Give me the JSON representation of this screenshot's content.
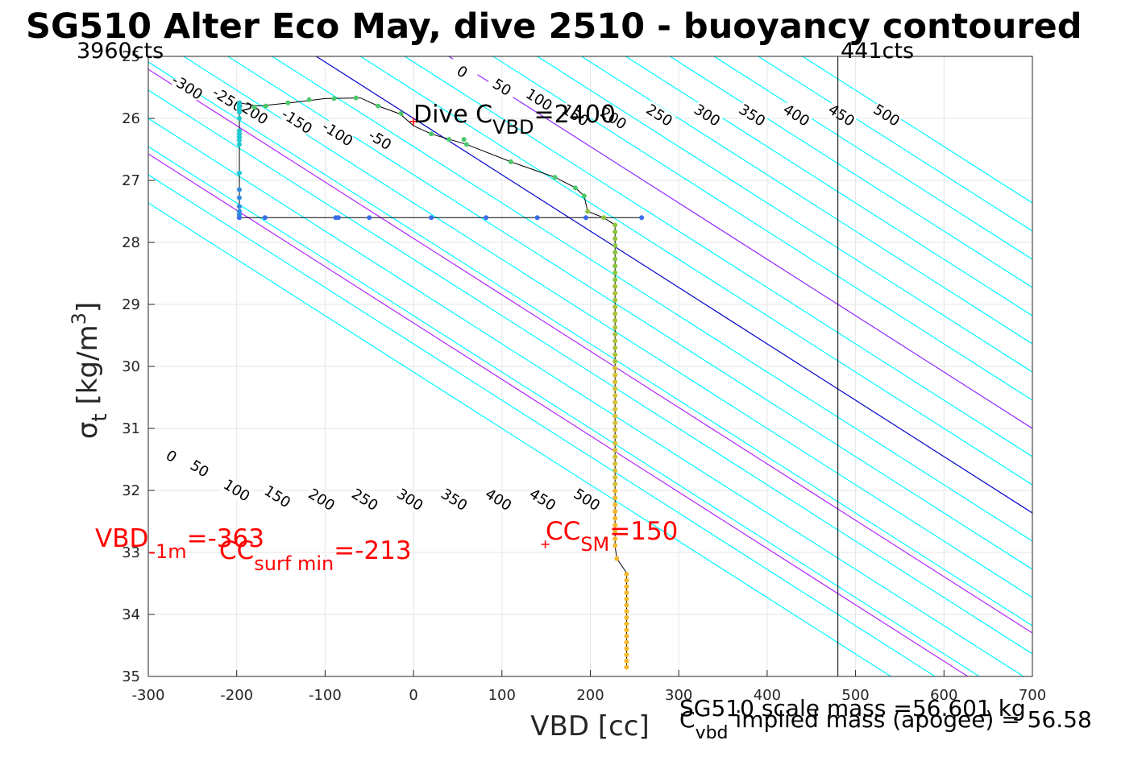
{
  "chart_data": {
    "type": "scatter",
    "title": "SG510 Alter Eco May, dive 2510 - buoyancy contoured",
    "xlabel": "VBD [cc]",
    "ylabel_main": "σ",
    "ylabel_sub": "t",
    "ylabel_units": "[kg/m",
    "ylabel_sup": "3",
    "ylabel_close": "]",
    "xlim": [
      -300,
      700
    ],
    "ylim": [
      25,
      35
    ],
    "y_reversed": true,
    "grid": true,
    "xticks": [
      "-300",
      "-200",
      "-100",
      "0",
      "100",
      "200",
      "300",
      "400",
      "500",
      "600",
      "700"
    ],
    "yticks": [
      "25",
      "26",
      "27",
      "28",
      "29",
      "30",
      "31",
      "32",
      "33",
      "34",
      "35"
    ],
    "corner_left": "3960cts",
    "corner_right": "441cts",
    "vbd_limit_line_x": 480,
    "contour_density_slope": 110,
    "colors": {
      "contour": "#00ffff",
      "zero_contour": "#0000cc",
      "highlight_contour": "#b026ff",
      "profile_line": "#000000",
      "annotation": "#ff0000"
    },
    "contour_offsets": [
      -450,
      -400,
      -350,
      -300,
      -250,
      -200,
      -150,
      -100,
      -50,
      0,
      50,
      100,
      150,
      200,
      250,
      300,
      350,
      400,
      450,
      500,
      550
    ],
    "highlight_offsets": [
      -363,
      -213,
      150
    ],
    "upper_contour_labels": [
      {
        "text": "-300",
        "x": -256,
        "y": 25.5
      },
      {
        "text": "-250",
        "x": -210,
        "y": 25.7
      },
      {
        "text": "-200",
        "x": -182,
        "y": 25.9
      },
      {
        "text": "-150",
        "x": -132,
        "y": 26.05
      },
      {
        "text": "-100",
        "x": -86,
        "y": 26.25
      },
      {
        "text": "-50",
        "x": -38,
        "y": 26.35
      },
      {
        "text": "0",
        "x": 55,
        "y": 25.25
      },
      {
        "text": "50",
        "x": 100,
        "y": 25.5
      },
      {
        "text": "100",
        "x": 142,
        "y": 25.7
      },
      {
        "text": "150",
        "x": 183,
        "y": 25.95
      },
      {
        "text": "200",
        "x": 226,
        "y": 26.0
      },
      {
        "text": "250",
        "x": 278,
        "y": 25.95
      },
      {
        "text": "300",
        "x": 332,
        "y": 25.95
      },
      {
        "text": "350",
        "x": 383,
        "y": 25.95
      },
      {
        "text": "400",
        "x": 433,
        "y": 25.95
      },
      {
        "text": "450",
        "x": 484,
        "y": 25.95
      },
      {
        "text": "500",
        "x": 535,
        "y": 25.95
      }
    ],
    "lower_contour_labels": [
      {
        "text": "0",
        "x": -274,
        "y": 31.45
      },
      {
        "text": "50",
        "x": -242,
        "y": 31.65
      },
      {
        "text": "100",
        "x": -200,
        "y": 32.0
      },
      {
        "text": "150",
        "x": -154,
        "y": 32.1
      },
      {
        "text": "200",
        "x": -104,
        "y": 32.15
      },
      {
        "text": "250",
        "x": -55,
        "y": 32.15
      },
      {
        "text": "300",
        "x": -4,
        "y": 32.15
      },
      {
        "text": "350",
        "x": 46,
        "y": 32.15
      },
      {
        "text": "400",
        "x": 96,
        "y": 32.15
      },
      {
        "text": "450",
        "x": 146,
        "y": 32.15
      },
      {
        "text": "500",
        "x": 196,
        "y": 32.15
      }
    ],
    "profile": [
      {
        "x": -197,
        "y": 27.6
      },
      {
        "x": -197,
        "y": 27.5
      },
      {
        "x": -197,
        "y": 27.3
      },
      {
        "x": -197,
        "y": 27.0
      },
      {
        "x": -197,
        "y": 26.7
      },
      {
        "x": -197,
        "y": 26.4
      },
      {
        "x": -197,
        "y": 26.1
      },
      {
        "x": -197,
        "y": 25.85
      },
      {
        "x": -197,
        "y": 25.75
      },
      {
        "x": -175,
        "y": 25.8
      },
      {
        "x": -140,
        "y": 25.75
      },
      {
        "x": -100,
        "y": 25.68
      },
      {
        "x": -60,
        "y": 25.67
      },
      {
        "x": -40,
        "y": 25.8
      },
      {
        "x": -15,
        "y": 25.93
      },
      {
        "x": 0,
        "y": 26.12
      },
      {
        "x": 20,
        "y": 26.25
      },
      {
        "x": 60,
        "y": 26.42
      },
      {
        "x": 110,
        "y": 26.7
      },
      {
        "x": 160,
        "y": 26.95
      },
      {
        "x": 183,
        "y": 27.12
      },
      {
        "x": 193,
        "y": 27.25
      },
      {
        "x": 197,
        "y": 27.5
      },
      {
        "x": 215,
        "y": 27.6
      },
      {
        "x": 228,
        "y": 27.72
      },
      {
        "x": 228,
        "y": 28.5
      },
      {
        "x": 228,
        "y": 29.5
      },
      {
        "x": 228,
        "y": 30.5
      },
      {
        "x": 228,
        "y": 31.5
      },
      {
        "x": 228,
        "y": 32.5
      },
      {
        "x": 228,
        "y": 32.9
      },
      {
        "x": 230,
        "y": 33.1
      },
      {
        "x": 241,
        "y": 33.33
      },
      {
        "x": 241,
        "y": 34.0
      },
      {
        "x": 241,
        "y": 34.85
      }
    ],
    "climb_segment": {
      "y": 27.6,
      "x_start": -197,
      "x_end": 258
    },
    "climb_points_x": [
      -197,
      -168,
      -88,
      -85,
      -50,
      20,
      82,
      140,
      195,
      258
    ],
    "descent_points": [
      {
        "x": -197,
        "y": 25.75
      },
      {
        "x": -197,
        "y": 25.78
      },
      {
        "x": -197,
        "y": 25.82
      },
      {
        "x": -197,
        "y": 25.86
      },
      {
        "x": -197,
        "y": 25.9
      },
      {
        "x": -197,
        "y": 26.0
      },
      {
        "x": -197,
        "y": 26.2
      },
      {
        "x": -197,
        "y": 26.25
      },
      {
        "x": -197,
        "y": 26.3
      },
      {
        "x": -197,
        "y": 26.35
      },
      {
        "x": -197,
        "y": 26.42
      },
      {
        "x": -197,
        "y": 26.88
      },
      {
        "x": -197,
        "y": 27.15
      },
      {
        "x": -197,
        "y": 27.28
      },
      {
        "x": -197,
        "y": 27.42
      },
      {
        "x": -197,
        "y": 27.5
      },
      {
        "x": -197,
        "y": 27.55
      },
      {
        "x": -197,
        "y": 27.6
      },
      {
        "x": -180,
        "y": 25.82
      },
      {
        "x": -167,
        "y": 25.8
      },
      {
        "x": -142,
        "y": 25.75
      },
      {
        "x": -118,
        "y": 25.7
      },
      {
        "x": -90,
        "y": 25.68
      },
      {
        "x": -65,
        "y": 25.67
      },
      {
        "x": -40,
        "y": 25.8
      },
      {
        "x": -14,
        "y": 25.92
      },
      {
        "x": 20,
        "y": 26.25
      },
      {
        "x": 40,
        "y": 26.34
      },
      {
        "x": 57,
        "y": 26.34
      },
      {
        "x": 57,
        "y": 26.34
      },
      {
        "x": 57,
        "y": 26.34
      },
      {
        "x": 57,
        "y": 26.34
      },
      {
        "x": 57,
        "y": 26.34
      },
      {
        "x": 57,
        "y": 26.34
      },
      {
        "x": 57,
        "y": 26.34
      },
      {
        "x": 57,
        "y": 26.34
      },
      {
        "x": 57,
        "y": 26.34
      },
      {
        "x": 57,
        "y": 26.34
      },
      {
        "x": 57,
        "y": 26.34
      },
      {
        "x": 57,
        "y": 26.34
      },
      {
        "x": 57,
        "y": 26.34
      },
      {
        "x": 57,
        "y": 26.34
      },
      {
        "x": 57,
        "y": 26.34
      },
      {
        "x": 57,
        "y": 26.34
      },
      {
        "x": 57,
        "y": 26.34
      },
      {
        "x": 57,
        "y": 26.34
      },
      {
        "x": 57,
        "y": 26.34
      },
      {
        "x": 57,
        "y": 26.34
      },
      {
        "x": 57,
        "y": 26.34
      },
      {
        "x": 57,
        "y": 26.34
      },
      {
        "x": 57,
        "y": 26.34
      },
      {
        "x": 57,
        "y": 26.34
      },
      {
        "x": 57,
        "y": 26.34
      },
      {
        "x": 57,
        "y": 26.34
      },
      {
        "x": 57,
        "y": 26.34
      },
      {
        "x": 57,
        "y": 26.34
      },
      {
        "x": 57,
        "y": 26.34
      },
      {
        "x": 57,
        "y": 26.34
      },
      {
        "x": 57,
        "y": 26.34
      },
      {
        "x": 57,
        "y": 26.34
      },
      {
        "x": 57,
        "y": 26.34
      },
      {
        "x": 57,
        "y": 26.34
      },
      {
        "x": 57,
        "y": 26.34
      },
      {
        "x": 57,
        "y": 26.34
      },
      {
        "x": 57,
        "y": 26.34
      },
      {
        "x": 57,
        "y": 26.34
      },
      {
        "x": 57,
        "y": 26.34
      },
      {
        "x": 57,
        "y": 26.34
      },
      {
        "x": 57,
        "y": 26.34
      },
      {
        "x": 57,
        "y": 26.34
      },
      {
        "x": 57,
        "y": 26.34
      },
      {
        "x": 57,
        "y": 26.34
      },
      {
        "x": 57,
        "y": 26.34
      },
      {
        "x": 57,
        "y": 26.34
      },
      {
        "x": 57,
        "y": 26.34
      },
      {
        "x": 57,
        "y": 26.34
      },
      {
        "x": 57,
        "y": 26.34
      },
      {
        "x": 57,
        "y": 26.34
      },
      {
        "x": 57,
        "y": 26.34
      },
      {
        "x": 57,
        "y": 26.34
      },
      {
        "x": 57,
        "y": 26.34
      },
      {
        "x": 57,
        "y": 26.34
      },
      {
        "x": 57,
        "y": 26.34
      },
      {
        "x": 57,
        "y": 26.34
      },
      {
        "x": 57,
        "y": 26.34
      },
      {
        "x": 57,
        "y": 26.34
      },
      {
        "x": 57,
        "y": 26.34
      },
      {
        "x": 57,
        "y": 26.34
      },
      {
        "x": 57,
        "y": 26.34
      },
      {
        "x": 57,
        "y": 26.34
      },
      {
        "x": 57,
        "y": 26.34
      },
      {
        "x": 57,
        "y": 26.34
      },
      {
        "x": 57,
        "y": 26.34
      },
      {
        "x": 57,
        "y": 26.34
      }
    ],
    "red_markers": [
      {
        "x": 0,
        "y": 26.05
      },
      {
        "x": 149,
        "y": 32.87
      }
    ],
    "annotations": {
      "dive_c": {
        "prefix": "Dive C",
        "sub": "VBD",
        "suffix": "=2400"
      },
      "vbd_1m": {
        "prefix": "VBD",
        "sub": "-1m",
        "suffix": "=-363"
      },
      "cc_surf": {
        "prefix": "CC",
        "sub": "surf min",
        "suffix": "=-213"
      },
      "cc_sm": {
        "prefix": "CC",
        "sub": "SM",
        "suffix": "=150"
      },
      "scale_mass": "SG510 scale mass =56.601 kg",
      "cvbd": {
        "prefix": "C",
        "sub": "vbd",
        "suffix": " implied mass (apogee) = 56.58"
      }
    }
  }
}
